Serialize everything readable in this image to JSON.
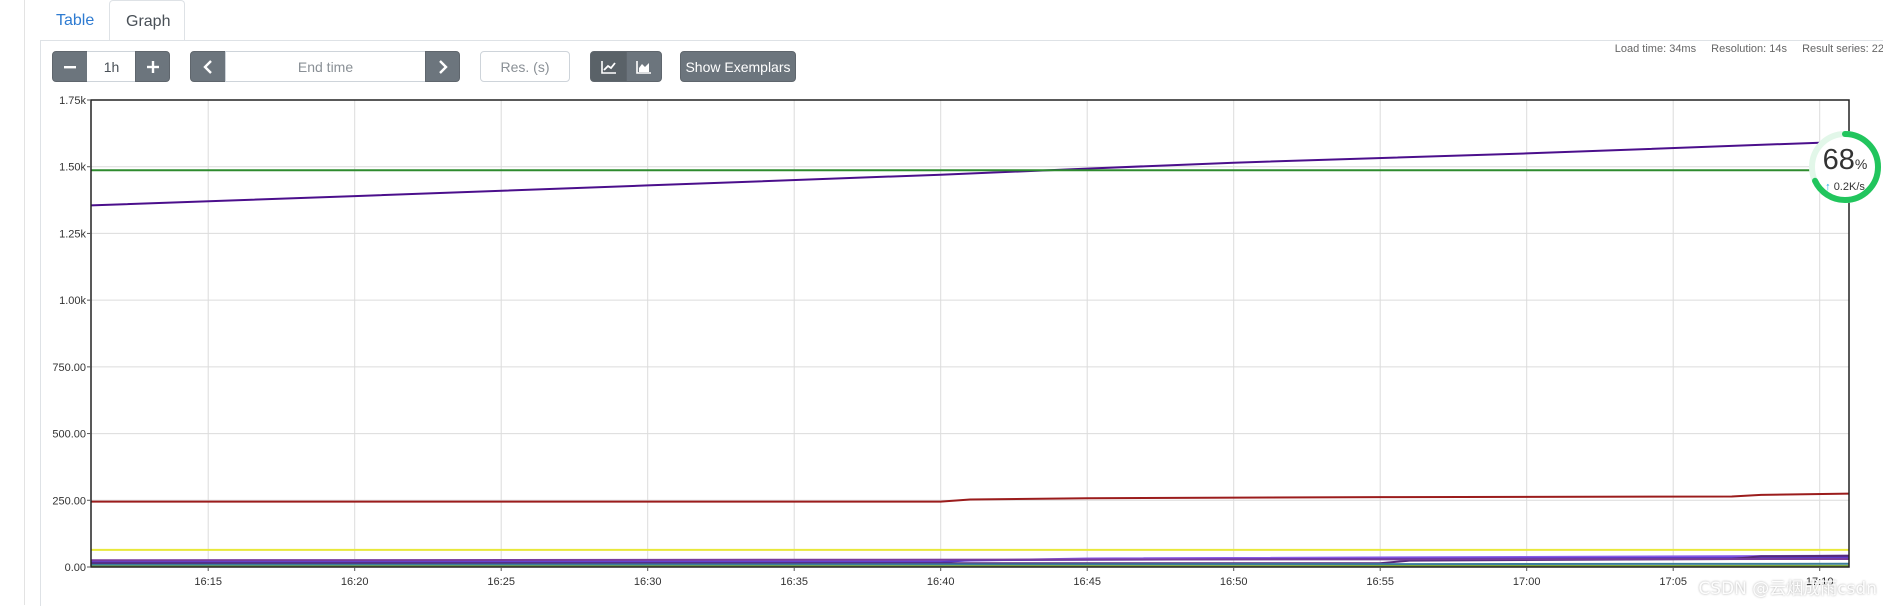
{
  "tabs": [
    {
      "label": "Table",
      "active": false
    },
    {
      "label": "Graph",
      "active": true
    }
  ],
  "stats": {
    "load_time": "Load time: 34ms",
    "resolution": "Resolution: 14s",
    "result_series": "Result series: 22"
  },
  "controls": {
    "range_value": "1h",
    "end_time_placeholder": "End time",
    "resolution_placeholder": "Res. (s)",
    "show_exemplars_label": "Show Exemplars"
  },
  "gauge": {
    "percent": "68",
    "percent_sign": "%",
    "rate": "0.2K/s",
    "progress": 0.68,
    "ring_color": "#21c55d"
  },
  "watermark": "CSDN @云烟成雨csdn",
  "chart_data": {
    "type": "line",
    "ylim": [
      0,
      1750
    ],
    "y_ticks": [
      {
        "value": 0,
        "label": "0.00"
      },
      {
        "value": 250,
        "label": "250.00"
      },
      {
        "value": 500,
        "label": "500.00"
      },
      {
        "value": 750,
        "label": "750.00"
      },
      {
        "value": 1000,
        "label": "1.00k"
      },
      {
        "value": 1250,
        "label": "1.25k"
      },
      {
        "value": 1500,
        "label": "1.50k"
      },
      {
        "value": 1750,
        "label": "1.75k"
      }
    ],
    "x_range": [
      "16:11",
      "17:11"
    ],
    "x_ticks": [
      "16:15",
      "16:20",
      "16:25",
      "16:30",
      "16:35",
      "16:40",
      "16:45",
      "16:50",
      "16:55",
      "17:00",
      "17:05",
      "17:10"
    ],
    "grid": true,
    "legend": "none",
    "series": [
      {
        "color": "#4b0f8c",
        "x": [
          "16:11",
          "16:20",
          "16:30",
          "16:40",
          "16:45",
          "16:50",
          "17:00",
          "17:10"
        ],
        "y": [
          1355,
          1390,
          1430,
          1470,
          1493,
          1515,
          1550,
          1590
        ]
      },
      {
        "color": "#2e8b2e",
        "x": [
          "16:11",
          "17:11"
        ],
        "y": [
          1487,
          1487
        ]
      },
      {
        "color": "#9b1c1c",
        "x": [
          "16:11",
          "16:40",
          "16:41",
          "16:45",
          "16:55",
          "17:07",
          "17:08",
          "17:11"
        ],
        "y": [
          245,
          245,
          253,
          258,
          262,
          264,
          270,
          275
        ]
      },
      {
        "color": "#e8e83a",
        "x": [
          "16:11",
          "17:11"
        ],
        "y": [
          64,
          64
        ]
      },
      {
        "color": "#8a5ce6",
        "x": [
          "16:11",
          "16:40",
          "16:45",
          "17:11"
        ],
        "y": [
          22,
          22,
          32,
          42
        ]
      },
      {
        "color": "#5a3cc8",
        "x": [
          "16:11",
          "16:40",
          "16:41",
          "17:11"
        ],
        "y": [
          18,
          18,
          26,
          36
        ]
      },
      {
        "color": "#552a7a",
        "x": [
          "16:11",
          "16:55",
          "16:56",
          "17:07",
          "17:08",
          "17:11"
        ],
        "y": [
          14,
          14,
          24,
          30,
          40,
          42
        ]
      },
      {
        "color": "#7a3b9c",
        "x": [
          "16:11",
          "17:11"
        ],
        "y": [
          25,
          30
        ]
      },
      {
        "color": "#3b7d9c",
        "x": [
          "16:11",
          "17:11"
        ],
        "y": [
          8,
          12
        ]
      },
      {
        "color": "#7fa83b",
        "x": [
          "16:11",
          "17:11"
        ],
        "y": [
          2,
          4
        ]
      }
    ]
  }
}
